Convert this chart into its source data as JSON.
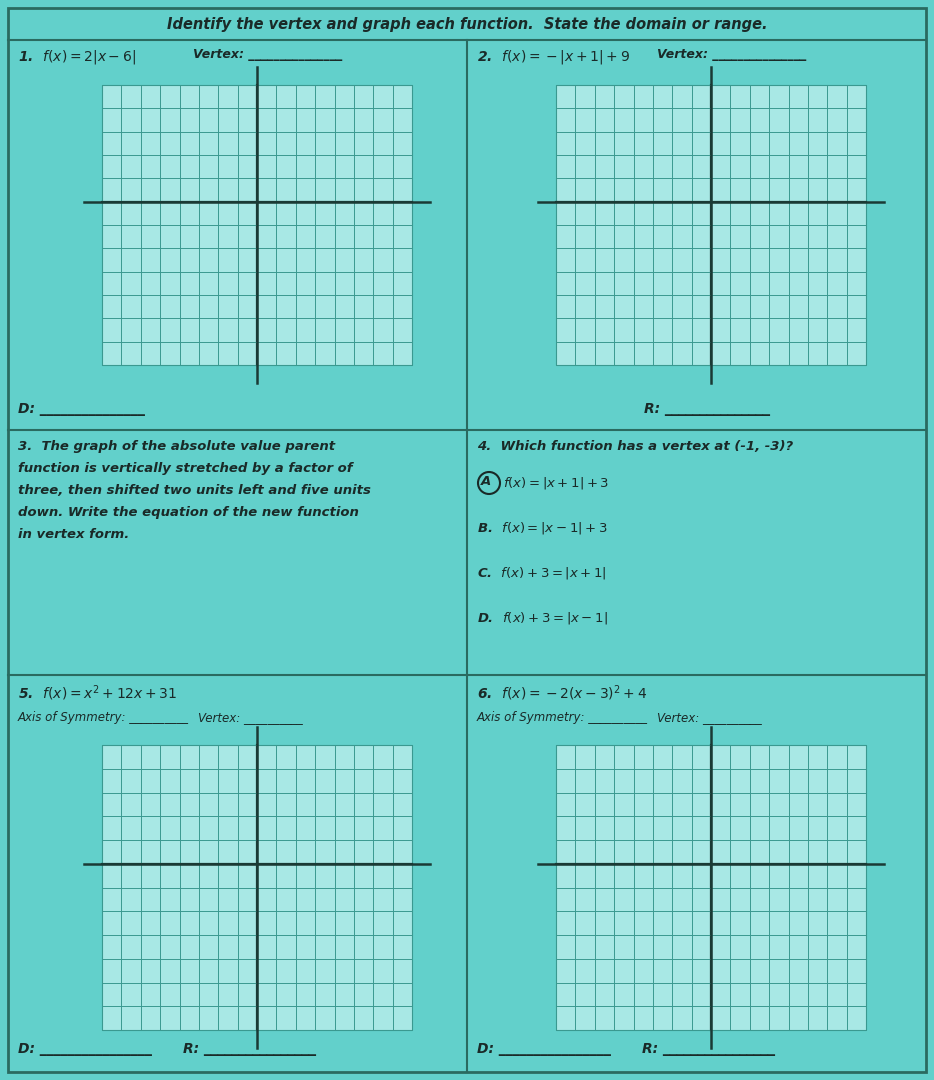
{
  "bg_color": "#62d0cb",
  "grid_bg_color": "#a8e8e5",
  "grid_line_color": "#3a9990",
  "axis_color": "#1a3a35",
  "border_color": "#2a6a60",
  "text_color": "#1a2a28",
  "title": "Identify the vertex and graph each function.  State the domain or range.",
  "title_fontsize": 10.5,
  "label_fontsize": 10,
  "body_fontsize": 9.5,
  "small_fontsize": 8.5,
  "p1_label": "1.  $\\mathit{f}(x) = 2|x - 6|$",
  "p1_vertex": "Vertex: _______________",
  "p1_D": "D: _______________",
  "p2_label": "2.  $\\mathit{f}(x) = -|x + 1| + 9$",
  "p2_vertex": "Vertex: _______________",
  "p2_R": "R: _______________",
  "p3_text_lines": [
    "3.  The graph of the absolute value parent",
    "function is vertically stretched by a factor of",
    "three, then shifted two units left and five units",
    "down. Write the equation of the new function",
    "in vertex form."
  ],
  "p4_label": "4.  Which function has a vertex at (-1, -3)?",
  "p4_A": "$\\mathit{f}(x) = |x + 1| + 3$",
  "p4_B": "B.  $\\mathit{f}(x) = |x - 1| + 3$",
  "p4_C": "C.  $\\mathit{f}(x) + 3 = |x + 1|$",
  "p4_D": "D.  $\\mathit{f}(x) + 3 = |x - 1|$",
  "p5_label": "5.  $\\mathit{f}(x) = x^2 + 12x + 31$",
  "p5_axis": "Axis of Symmetry: __________",
  "p5_vertex": "Vertex: __________",
  "p5_D": "D: ________________",
  "p5_R": "R: ________________",
  "p6_label": "6.  $\\mathit{f}(x) = -2(x - 3)^2 + 4$",
  "p6_axis": "Axis of Symmetry: __________",
  "p6_vertex": "Vertex: __________",
  "p6_D": "D: ________________",
  "p6_R": "R: ________________"
}
